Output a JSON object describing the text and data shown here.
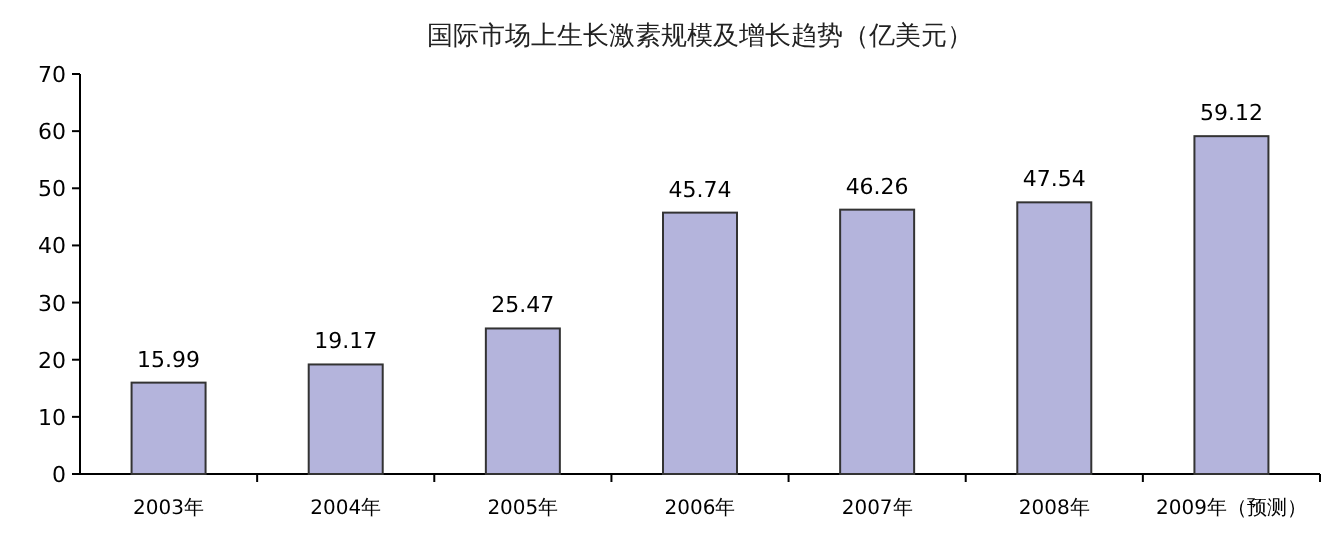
{
  "chart_data": {
    "type": "bar",
    "title": "国际市场上生长激素规模及增长趋势（亿美元）",
    "categories": [
      "2003年",
      "2004年",
      "2005年",
      "2006年",
      "2007年",
      "2008年",
      "2009年（预测）"
    ],
    "values": [
      15.99,
      19.17,
      25.47,
      45.74,
      46.26,
      47.54,
      59.12
    ],
    "color": "#b4b4dc",
    "ylim": [
      0,
      70
    ],
    "yticks": [
      0,
      10,
      20,
      30,
      40,
      50,
      60,
      70
    ],
    "data_labels": true
  }
}
